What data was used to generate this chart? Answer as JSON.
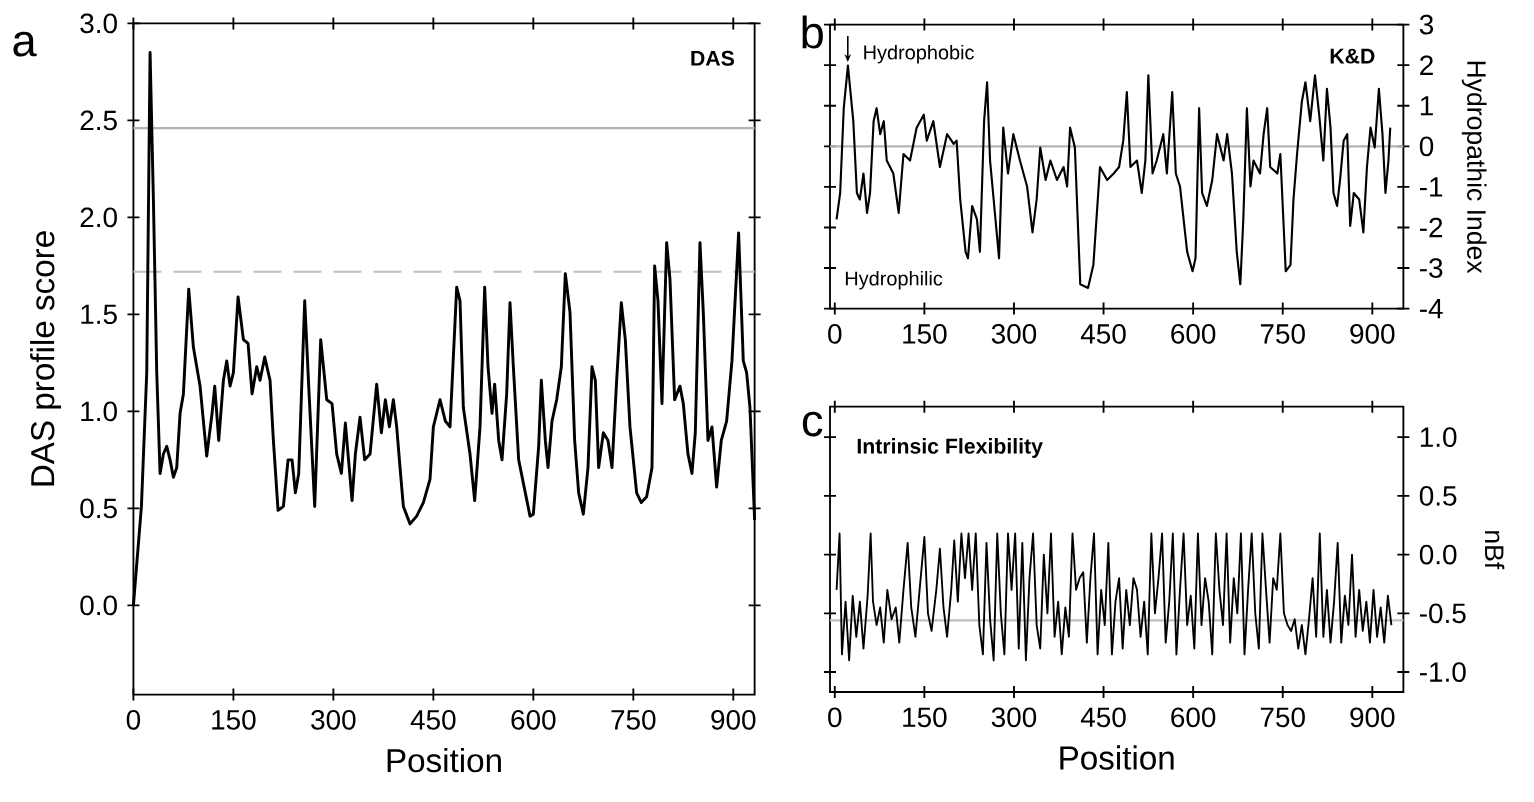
{
  "chart_data": [
    {
      "type": "line",
      "xlabel": "Position",
      "ylabel": "DAS profile score",
      "annotations": [
        "a",
        "DAS"
      ],
      "xlim": [
        0,
        932
      ],
      "ylim": [
        -0.46,
        3.0
      ],
      "xticks": [
        0,
        150,
        300,
        450,
        600,
        750,
        900
      ],
      "yticks": [
        {
          "value": 0,
          "label": "0.0"
        },
        {
          "value": 0.5,
          "label": "0.5"
        },
        {
          "value": 1,
          "label": "1.0"
        },
        {
          "value": 1.5,
          "label": "1.5"
        },
        {
          "value": 2,
          "label": "2.0"
        },
        {
          "value": 2.5,
          "label": "2.5"
        },
        {
          "value": 3,
          "label": "3.0"
        }
      ],
      "ref_lines": [
        {
          "axis": "y",
          "value": 2.46,
          "color": "#b4b4b4",
          "line_style": "solid"
        },
        {
          "axis": "y",
          "value": 1.72,
          "color": "#c0c0c0",
          "line_style": "dashed"
        }
      ],
      "series": [
        {
          "color": "#000000",
          "x": [
            0,
            12,
            20,
            25,
            30,
            35,
            40,
            45,
            50,
            55,
            60,
            65,
            70,
            75,
            83,
            90,
            100,
            110,
            118,
            122,
            128,
            135,
            140,
            145,
            150,
            157,
            165,
            172,
            178,
            185,
            190,
            197,
            205,
            210,
            217,
            225,
            232,
            238,
            243,
            248,
            257,
            263,
            272,
            281,
            290,
            298,
            305,
            312,
            318,
            322,
            328,
            333,
            340,
            347,
            355,
            365,
            372,
            378,
            384,
            390,
            395,
            400,
            405,
            415,
            425,
            435,
            445,
            450,
            460,
            468,
            475,
            485,
            490,
            495,
            505,
            512,
            520,
            527,
            532,
            538,
            542,
            548,
            553,
            560,
            565,
            570,
            578,
            588,
            595,
            600,
            608,
            612,
            618,
            622,
            628,
            635,
            642,
            648,
            655,
            662,
            668,
            675,
            682,
            688,
            693,
            698,
            705,
            712,
            718,
            725,
            732,
            738,
            745,
            755,
            762,
            770,
            778,
            782,
            787,
            793,
            800,
            805,
            812,
            820,
            825,
            832,
            838,
            843,
            850,
            855,
            862,
            868,
            875,
            882,
            890,
            898,
            908,
            915,
            920,
            925,
            932
          ],
          "values": [
            0.0,
            0.51,
            1.2,
            2.85,
            2.09,
            1.2,
            0.68,
            0.78,
            0.82,
            0.75,
            0.66,
            0.71,
            0.99,
            1.09,
            1.63,
            1.33,
            1.13,
            0.77,
            0.99,
            1.13,
            0.85,
            1.16,
            1.26,
            1.13,
            1.2,
            1.59,
            1.37,
            1.35,
            1.09,
            1.23,
            1.16,
            1.28,
            1.16,
            0.85,
            0.49,
            0.51,
            0.75,
            0.75,
            0.58,
            0.68,
            1.57,
            1.13,
            0.51,
            1.37,
            1.06,
            1.04,
            0.78,
            0.68,
            0.94,
            0.78,
            0.54,
            0.78,
            0.97,
            0.75,
            0.78,
            1.14,
            0.89,
            1.06,
            0.92,
            1.06,
            0.92,
            0.71,
            0.51,
            0.42,
            0.46,
            0.53,
            0.65,
            0.92,
            1.06,
            0.95,
            0.92,
            1.64,
            1.57,
            1.02,
            0.78,
            0.54,
            0.92,
            1.64,
            1.23,
            0.99,
            1.14,
            0.85,
            0.75,
            1.09,
            1.56,
            1.23,
            0.75,
            0.58,
            0.46,
            0.47,
            0.82,
            1.16,
            0.85,
            0.71,
            0.95,
            1.06,
            1.23,
            1.71,
            1.51,
            0.85,
            0.58,
            0.47,
            0.71,
            1.23,
            1.16,
            0.71,
            0.89,
            0.85,
            0.71,
            1.16,
            1.56,
            1.37,
            0.92,
            0.58,
            0.53,
            0.56,
            0.71,
            1.75,
            1.57,
            1.04,
            1.87,
            1.68,
            1.06,
            1.13,
            1.04,
            0.78,
            0.68,
            0.89,
            1.87,
            1.51,
            0.85,
            0.92,
            0.61,
            0.85,
            0.95,
            1.26,
            1.92,
            1.26,
            1.2,
            1.02,
            0.44
          ]
        }
      ]
    },
    {
      "type": "line",
      "ylabel": "Hydropathic Index",
      "annotations": [
        "b",
        "K&D",
        "Hydrophobic",
        "Hydrophilic"
      ],
      "xlim": [
        -8,
        952
      ],
      "ylim": [
        -4,
        3
      ],
      "xticks": [
        0,
        150,
        300,
        450,
        600,
        750,
        900
      ],
      "yticks": [
        -4,
        -3,
        -2,
        -1,
        0,
        1,
        2,
        3
      ],
      "ref_lines": [
        {
          "axis": "y",
          "value": 0,
          "color": "#b4b4b4",
          "line_style": "solid"
        }
      ],
      "series": [
        {
          "color": "#000000",
          "x": [
            3,
            9,
            15,
            22,
            31,
            37,
            42,
            48,
            54,
            59,
            65,
            70,
            76,
            82,
            87,
            98,
            107,
            115,
            126,
            137,
            149,
            154,
            165,
            176,
            188,
            199,
            204,
            210,
            219,
            223,
            230,
            238,
            243,
            250,
            255,
            260,
            266,
            275,
            282,
            290,
            299,
            310,
            322,
            331,
            338,
            344,
            353,
            361,
            372,
            383,
            389,
            394,
            402,
            411,
            424,
            433,
            444,
            456,
            467,
            476,
            483,
            489,
            495,
            506,
            514,
            520,
            525,
            532,
            539,
            550,
            556,
            565,
            571,
            578,
            590,
            599,
            604,
            610,
            615,
            623,
            632,
            640,
            651,
            657,
            665,
            673,
            679,
            684,
            690,
            696,
            701,
            712,
            718,
            724,
            729,
            741,
            746,
            755,
            763,
            768,
            774,
            782,
            788,
            796,
            804,
            811,
            818,
            824,
            830,
            835,
            841,
            846,
            852,
            858,
            863,
            869,
            878,
            885,
            891,
            897,
            904,
            911,
            917,
            922,
            927,
            930
          ],
          "values": [
            -1.8,
            -1.15,
            0.94,
            1.99,
            0.62,
            -1.15,
            -1.31,
            -0.67,
            -1.64,
            -1.15,
            0.62,
            0.94,
            0.3,
            0.62,
            -0.35,
            -0.67,
            -1.64,
            -0.19,
            -0.35,
            0.46,
            0.78,
            0.14,
            0.62,
            -0.51,
            0.3,
            0.06,
            0.14,
            -1.31,
            -2.6,
            -2.76,
            -1.47,
            -1.8,
            -2.6,
            0.62,
            1.58,
            -0.35,
            -1.31,
            -2.76,
            0.46,
            -0.67,
            0.3,
            -0.35,
            -0.99,
            -2.12,
            -1.31,
            -0.03,
            -0.83,
            -0.35,
            -0.83,
            -0.51,
            -0.99,
            0.46,
            -0.03,
            -3.4,
            -3.49,
            -2.92,
            -0.51,
            -0.83,
            -0.67,
            -0.51,
            0.14,
            1.34,
            -0.51,
            -0.35,
            -1.15,
            -0.35,
            1.75,
            -0.67,
            -0.35,
            0.3,
            -0.67,
            1.34,
            -0.67,
            -0.99,
            -2.6,
            -3.08,
            -2.76,
            0.94,
            -1.15,
            -1.47,
            -0.83,
            0.3,
            -0.35,
            0.3,
            -0.67,
            -2.6,
            -3.4,
            -1.8,
            0.94,
            -0.99,
            -0.35,
            -0.67,
            0.3,
            0.94,
            -0.51,
            -0.67,
            -0.19,
            -3.08,
            -2.92,
            -1.31,
            -0.19,
            1.1,
            1.58,
            0.62,
            1.75,
            0.78,
            -0.35,
            1.42,
            0.46,
            -1.15,
            -1.47,
            -0.83,
            0.14,
            0.3,
            -1.96,
            -1.15,
            -1.31,
            -2.12,
            -0.51,
            0.46,
            -0.03,
            1.42,
            0.3,
            -1.15,
            -0.35,
            0.46
          ]
        }
      ]
    },
    {
      "type": "line",
      "xlabel": "Position",
      "ylabel": "nBf",
      "annotations": [
        "c",
        "Intrinsic Flexibility"
      ],
      "xlim": [
        -8,
        952
      ],
      "ylim": [
        -1.17,
        1.26
      ],
      "xticks": [
        0,
        150,
        300,
        450,
        600,
        750,
        900
      ],
      "yticks": [
        {
          "value": -1,
          "label": "-1.0"
        },
        {
          "value": -0.5,
          "label": "-0.5"
        },
        {
          "value": 0,
          "label": "0.0"
        },
        {
          "value": 0.5,
          "label": "0.5"
        },
        {
          "value": 1,
          "label": "1.0"
        }
      ],
      "ref_lines": [
        {
          "axis": "y",
          "value": -0.56,
          "color": "#c0c0c0",
          "line_style": "solid"
        }
      ],
      "series": [
        {
          "color": "#000000",
          "x": [
            3,
            8,
            12,
            18,
            24,
            30,
            36,
            42,
            48,
            55,
            60,
            64,
            70,
            76,
            82,
            88,
            95,
            102,
            108,
            115,
            122,
            128,
            135,
            142,
            150,
            156,
            162,
            170,
            176,
            182,
            188,
            195,
            200,
            206,
            212,
            218,
            224,
            230,
            236,
            242,
            248,
            254,
            260,
            266,
            272,
            278,
            284,
            290,
            296,
            302,
            308,
            314,
            320,
            326,
            332,
            338,
            344,
            350,
            356,
            362,
            368,
            374,
            380,
            386,
            392,
            398,
            404,
            410,
            416,
            422,
            428,
            434,
            440,
            446,
            452,
            458,
            464,
            470,
            476,
            482,
            488,
            494,
            500,
            506,
            512,
            518,
            524,
            530,
            536,
            542,
            548,
            554,
            560,
            566,
            572,
            578,
            584,
            590,
            596,
            602,
            608,
            614,
            620,
            626,
            632,
            638,
            644,
            650,
            656,
            662,
            668,
            674,
            680,
            686,
            692,
            698,
            704,
            710,
            716,
            722,
            728,
            734,
            740,
            746,
            752,
            758,
            764,
            770,
            776,
            782,
            788,
            794,
            800,
            806,
            812,
            818,
            824,
            830,
            836,
            842,
            848,
            854,
            860,
            866,
            872,
            878,
            884,
            890,
            896,
            902,
            908,
            914,
            920,
            926,
            932
          ],
          "values": [
            -0.3,
            0.18,
            -0.85,
            -0.4,
            -0.9,
            -0.35,
            -0.7,
            -0.4,
            -0.8,
            -0.35,
            0.18,
            -0.4,
            -0.6,
            -0.45,
            -0.75,
            -0.3,
            -0.55,
            -0.45,
            -0.75,
            -0.3,
            0.1,
            -0.45,
            -0.7,
            -0.3,
            0.15,
            -0.5,
            -0.65,
            -0.3,
            0.05,
            -0.45,
            -0.7,
            -0.3,
            0.12,
            -0.4,
            0.18,
            -0.2,
            0.18,
            -0.3,
            0.18,
            -0.6,
            -0.85,
            0.1,
            -0.55,
            -0.9,
            0.18,
            -0.5,
            -0.85,
            0.18,
            -0.3,
            0.18,
            -0.8,
            0.1,
            -0.9,
            -0.2,
            0.18,
            -0.6,
            -0.8,
            0.0,
            -0.5,
            0.18,
            -0.7,
            -0.4,
            -0.85,
            -0.45,
            -0.7,
            0.18,
            -0.3,
            -0.2,
            -0.15,
            -0.75,
            -0.2,
            0.18,
            -0.85,
            -0.3,
            -0.6,
            0.1,
            -0.85,
            -0.4,
            -0.2,
            -0.8,
            -0.3,
            -0.6,
            -0.2,
            -0.3,
            -0.7,
            -0.4,
            -0.85,
            0.18,
            -0.5,
            -0.2,
            0.18,
            -0.75,
            -0.4,
            0.18,
            -0.85,
            -0.3,
            0.18,
            -0.6,
            -0.35,
            -0.8,
            0.18,
            -0.6,
            -0.2,
            -0.4,
            -0.85,
            0.18,
            -0.3,
            -0.6,
            0.18,
            -0.75,
            -0.2,
            -0.5,
            0.18,
            -0.85,
            -0.3,
            0.18,
            -0.5,
            -0.8,
            0.18,
            -0.3,
            -0.75,
            -0.2,
            -0.3,
            0.18,
            -0.5,
            -0.6,
            -0.65,
            -0.55,
            -0.8,
            -0.6,
            -0.85,
            -0.55,
            -0.2,
            -0.7,
            0.18,
            -0.7,
            -0.3,
            -0.75,
            -0.4,
            0.1,
            -0.75,
            -0.35,
            -0.6,
            0.0,
            -0.7,
            -0.3,
            -0.65,
            -0.4,
            -0.75,
            -0.3,
            -0.7,
            -0.45,
            -0.75,
            -0.35,
            -0.6
          ]
        }
      ]
    }
  ]
}
